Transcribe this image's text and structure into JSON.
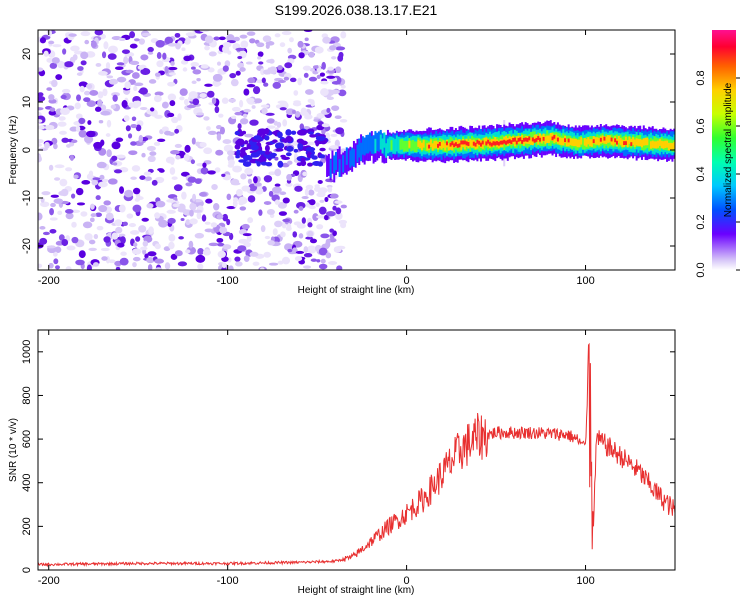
{
  "title": "S199.2026.038.13.17.E21",
  "colors": {
    "spectrogram_points": "#5a00e0",
    "snr_line": "#e83030",
    "axes": "#000000"
  },
  "chart_data": [
    {
      "type": "heatmap",
      "title": "S199.2026.038.13.17.E21",
      "xlabel": "Height of straight line (km)",
      "ylabel": "Frequency (Hz)",
      "xlim": [
        -206,
        150
      ],
      "ylim": [
        -25,
        25
      ],
      "xticks": [
        -200,
        -100,
        0,
        100
      ],
      "yticks": [
        -20,
        -10,
        0,
        10,
        20
      ],
      "xtick_labels": [
        "-200",
        "-100",
        "0",
        "100"
      ],
      "ytick_labels": [
        "-20",
        "-10",
        "0",
        "10",
        "20"
      ],
      "colorbar": {
        "label": "Normalized spectral amplitude",
        "range": [
          0.0,
          1.0
        ],
        "ticks": [
          0.0,
          0.2,
          0.4,
          0.6,
          0.8
        ],
        "tick_labels": [
          "0.0",
          "0.2",
          "0.4",
          "0.6",
          "0.8"
        ]
      },
      "signal_track": [
        {
          "x": -45,
          "freq": -4,
          "amp": 0.3
        },
        {
          "x": -30,
          "freq": -1,
          "amp": 0.35
        },
        {
          "x": -20,
          "freq": 1,
          "amp": 0.4
        },
        {
          "x": 0,
          "freq": 1,
          "amp": 0.7
        },
        {
          "x": 20,
          "freq": 1,
          "amp": 0.9
        },
        {
          "x": 50,
          "freq": 1.5,
          "amp": 0.95
        },
        {
          "x": 80,
          "freq": 2.5,
          "amp": 0.9
        },
        {
          "x": 95,
          "freq": 1.5,
          "amp": 0.8
        },
        {
          "x": 110,
          "freq": 2,
          "amp": 0.85
        },
        {
          "x": 150,
          "freq": 1,
          "amp": 0.8
        }
      ],
      "noise_region": {
        "x_range": [
          -206,
          -35
        ],
        "freq_range": [
          -25,
          25
        ]
      }
    },
    {
      "type": "line",
      "xlabel": "Height of straight line (km)",
      "ylabel": "SNR (10 * v/v)",
      "xlim": [
        -206,
        150
      ],
      "ylim": [
        0,
        1100
      ],
      "xticks": [
        -200,
        -100,
        0,
        100
      ],
      "yticks": [
        0,
        200,
        400,
        600,
        800,
        1000
      ],
      "xtick_labels": [
        "-200",
        "-100",
        "0",
        "100"
      ],
      "ytick_labels": [
        "0",
        "200",
        "400",
        "600",
        "800",
        "1000"
      ],
      "series": [
        {
          "name": "SNR",
          "x": [
            -206,
            -150,
            -100,
            -60,
            -40,
            -30,
            -20,
            -10,
            0,
            10,
            20,
            30,
            40,
            50,
            60,
            70,
            80,
            90,
            95,
            100,
            102,
            104,
            106,
            110,
            120,
            130,
            140,
            150
          ],
          "y": [
            25,
            30,
            30,
            35,
            40,
            60,
            130,
            200,
            260,
            330,
            440,
            550,
            610,
            630,
            630,
            630,
            625,
            620,
            600,
            560,
            1050,
            90,
            600,
            580,
            520,
            450,
            350,
            270
          ]
        }
      ]
    }
  ]
}
